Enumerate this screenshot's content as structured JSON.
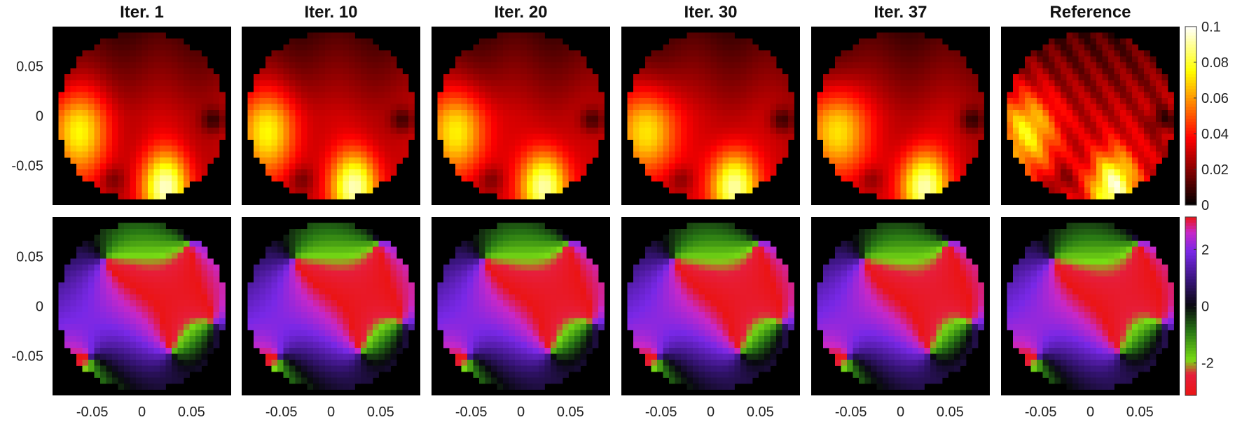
{
  "chart_data": {
    "type": "heatmap",
    "panel_titles": [
      "Iter. 1",
      "Iter. 10",
      "Iter. 20",
      "Iter. 30",
      "Iter. 37",
      "Reference"
    ],
    "rows": [
      {
        "name": "",
        "colormap": "hot",
        "clim": [
          0,
          0.1
        ],
        "colorbar_ticks": [
          "0",
          "0.02",
          "0.04",
          "0.06",
          "0.08",
          "0.1"
        ],
        "colorbar_values": [
          0,
          0.02,
          0.04,
          0.06,
          0.08,
          0.1
        ]
      },
      {
        "name": "",
        "colormap": "cyclic-phase",
        "clim": [
          -3.1416,
          3.1416
        ],
        "colorbar_ticks": [
          "-2",
          "0",
          "2"
        ],
        "colorbar_values": [
          -2,
          0,
          2
        ]
      }
    ],
    "x_ticks": [
      "-0.05",
      "0",
      "0.05"
    ],
    "x_tick_values": [
      -0.05,
      0,
      0.05
    ],
    "y_ticks": [
      "0.05",
      "0",
      "-0.05"
    ],
    "y_tick_values": [
      0.05,
      0,
      -0.05
    ],
    "xlim": [
      -0.09,
      0.09
    ],
    "ylim": [
      -0.09,
      0.09
    ],
    "aperture": "circular",
    "aperture_radius": 0.085,
    "grid": false,
    "colors": {
      "background": "#000000"
    }
  }
}
